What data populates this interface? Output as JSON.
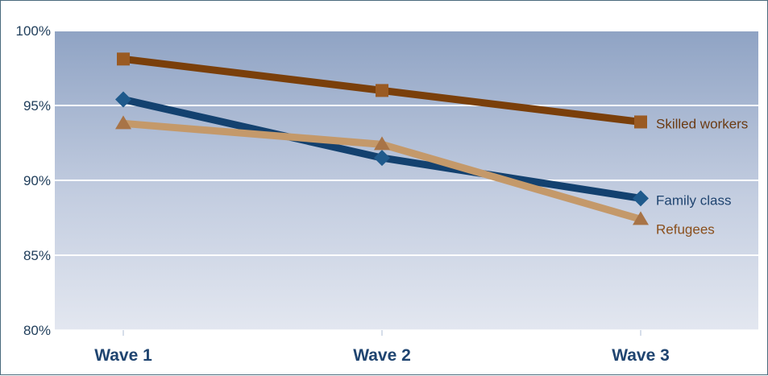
{
  "chart_data": {
    "type": "line",
    "title": "",
    "xlabel": "",
    "ylabel": "",
    "categories": [
      "Wave 1",
      "Wave 2",
      "Wave 3"
    ],
    "ylim": [
      80,
      100
    ],
    "yticks": [
      80,
      85,
      90,
      95,
      100
    ],
    "ytick_labels": [
      "80%",
      "85%",
      "90%",
      "95%",
      "100%"
    ],
    "grid": true,
    "legend": "inline labels at line ends",
    "series": [
      {
        "name": "Skilled workers",
        "values": [
          98.1,
          96.0,
          93.9
        ],
        "color": "#7a3f0a",
        "label_color": "#6b3a12",
        "marker": "square"
      },
      {
        "name": "Family class",
        "values": [
          95.4,
          91.5,
          88.8
        ],
        "color": "#13416f",
        "label_color": "#1f4470",
        "marker": "diamond"
      },
      {
        "name": "Refugees",
        "values": [
          93.8,
          92.4,
          87.4
        ],
        "color": "#c4996a",
        "label_color": "#8a4f1c",
        "marker": "triangle"
      }
    ]
  }
}
